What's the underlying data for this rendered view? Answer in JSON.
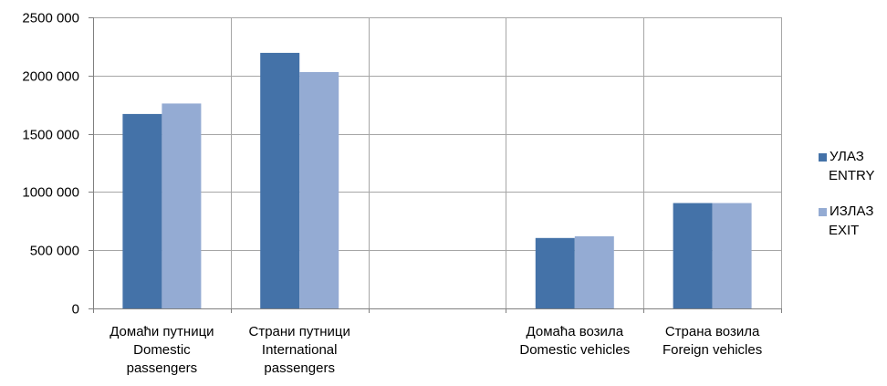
{
  "chart_data": {
    "type": "bar",
    "categories": [
      [
        "Домаћи путници",
        "Domestic",
        "passengers"
      ],
      [
        "Страни путници",
        "International",
        "passengers"
      ],
      [],
      [
        "Домаћа возила",
        "Domestic vehicles"
      ],
      [
        "Страна возила",
        "Foreign vehicles"
      ]
    ],
    "series": [
      {
        "name": [
          "УЛАЗ",
          "ENTRY"
        ],
        "values": [
          1670000,
          2195000,
          null,
          605000,
          905000
        ]
      },
      {
        "name": [
          "ИЗЛАЗ",
          "EXIT"
        ],
        "values": [
          1760000,
          2030000,
          null,
          620000,
          905000
        ]
      }
    ],
    "ylim": [
      0,
      2500000
    ],
    "yticks": [
      0,
      500000,
      1000000,
      1500000,
      2000000,
      2500000
    ],
    "ytick_labels": [
      "0",
      "500 000",
      "1000 000",
      "1500 000",
      "2000 000",
      "2500 000"
    ],
    "grid": true,
    "legend_position": "right",
    "colors": [
      "#4472a8",
      "#94abd3"
    ],
    "grid_color": "#a6a6a6",
    "axis_color": "#808080"
  }
}
